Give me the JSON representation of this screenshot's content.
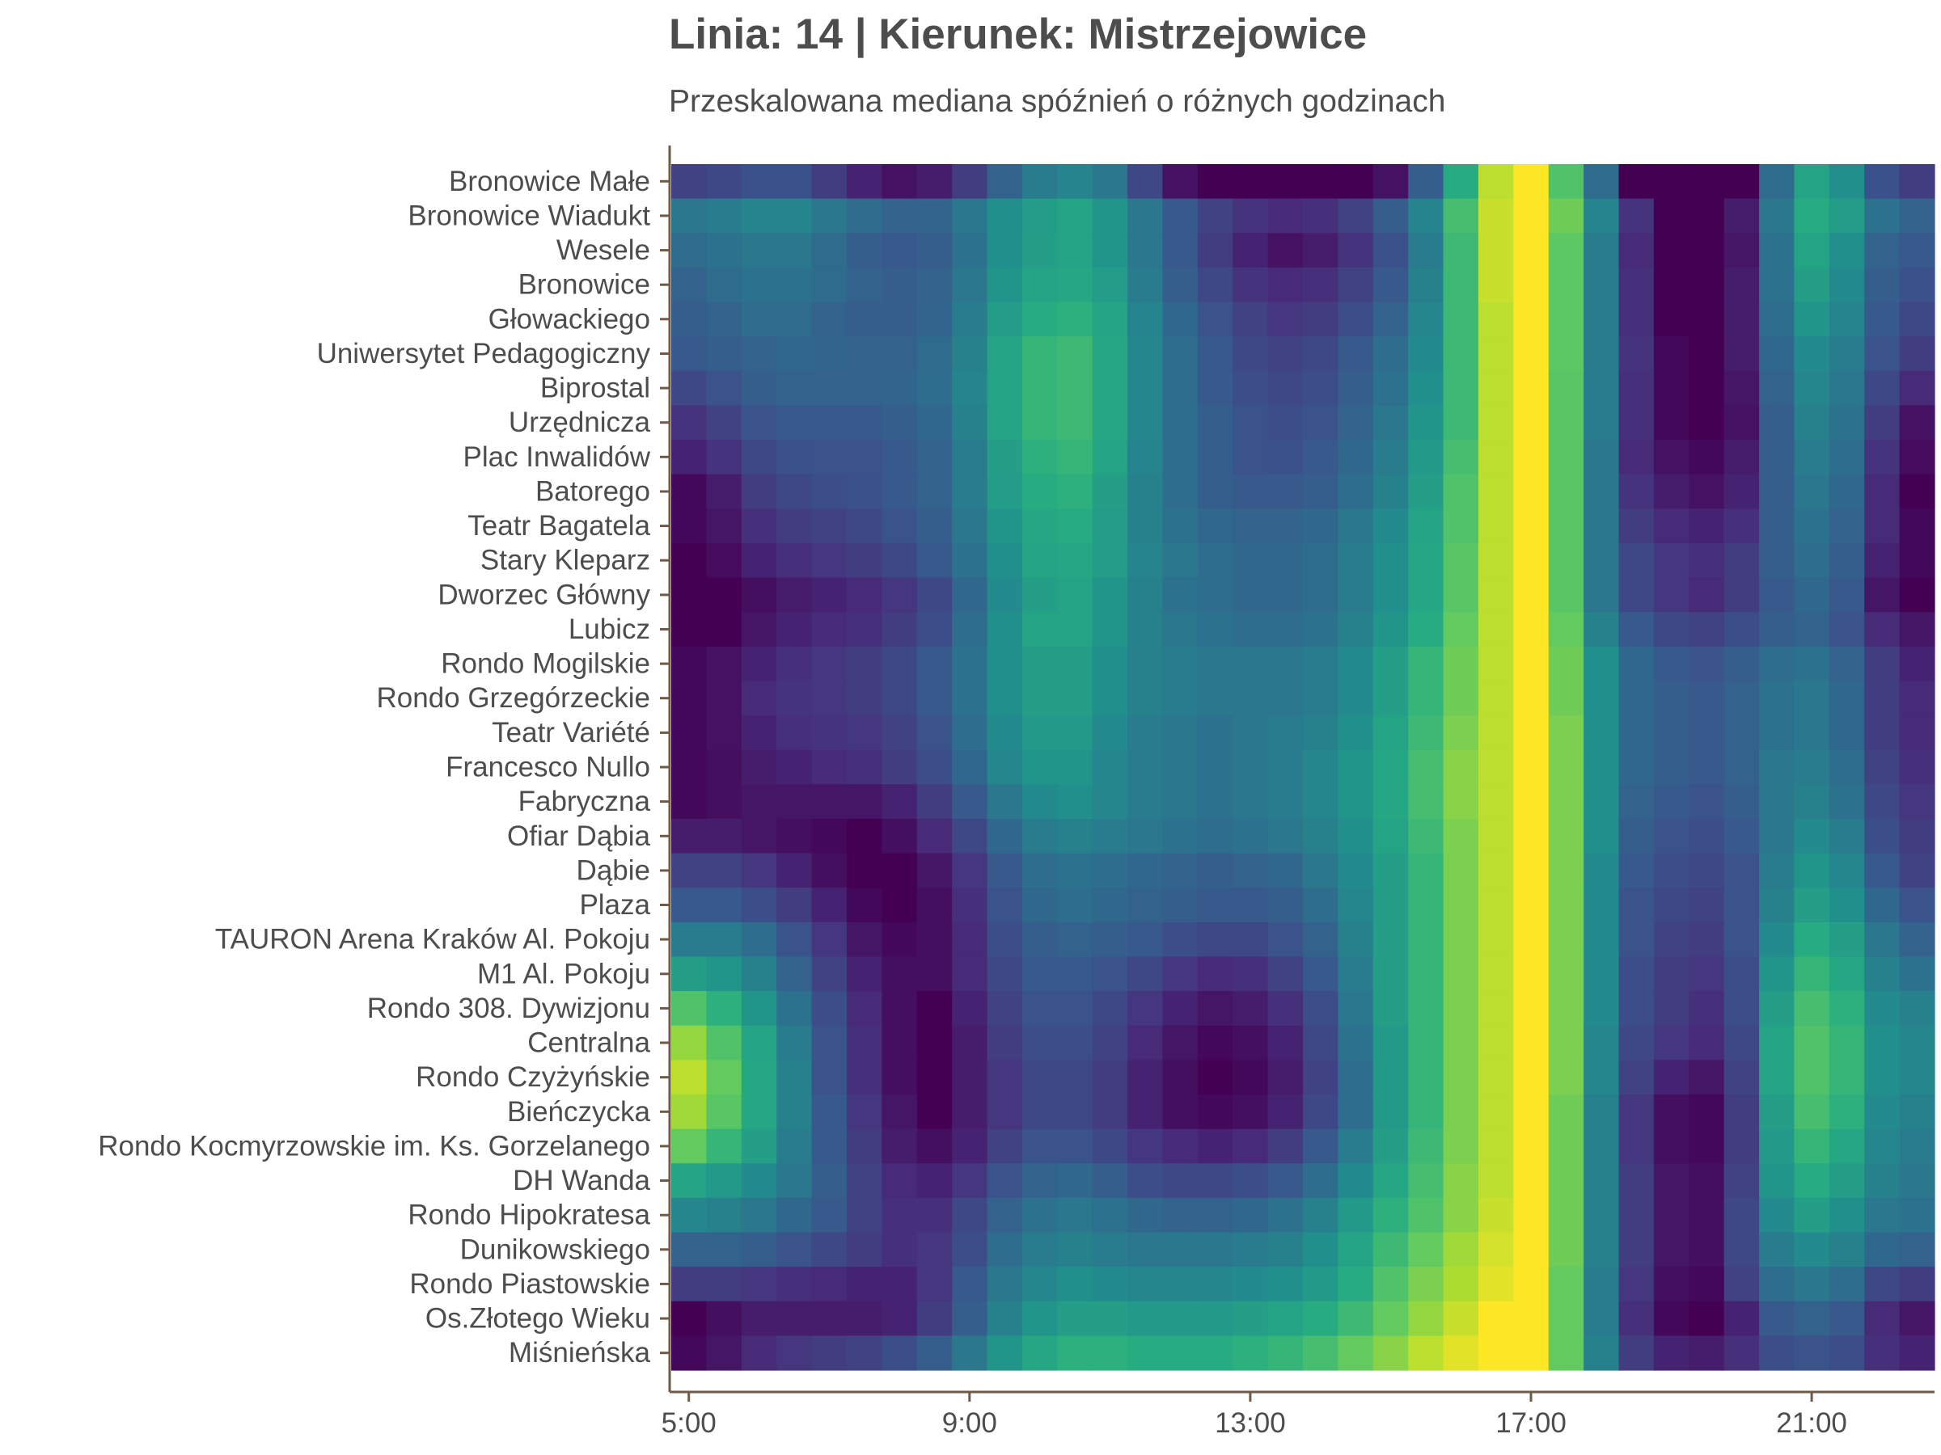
{
  "chart_data": {
    "type": "heatmap",
    "title": "Linia: 14 | Kierunek: Mistrzejowice",
    "subtitle": "Przeskalowana mediana spóźnień o różnych godzinach",
    "xlabel": "",
    "ylabel": "",
    "x_hours": [
      5,
      5.5,
      6,
      6.5,
      7,
      7.5,
      8,
      8.5,
      9,
      9.5,
      10,
      10.5,
      11,
      11.5,
      12,
      12.5,
      13,
      13.5,
      14,
      14.5,
      15,
      15.5,
      16,
      16.5,
      17,
      17.5,
      18,
      18.5,
      19,
      19.5,
      20,
      20.5,
      21,
      21.5,
      22,
      22.5
    ],
    "x_ticks": [
      "5:00",
      "9:00",
      "13:00",
      "17:00",
      "21:00"
    ],
    "x_tick_hours": [
      5,
      9,
      13,
      17,
      21
    ],
    "xlim": [
      4.75,
      22.75
    ],
    "colorscale": "viridis",
    "value_range": [
      0,
      1
    ],
    "stops": [
      "Bronowice Małe",
      "Bronowice Wiadukt",
      "Wesele",
      "Bronowice",
      "Głowackiego",
      "Uniwersytet Pedagogiczny",
      "Biprostal",
      "Urzędnicza",
      "Plac Inwalidów",
      "Batorego",
      "Teatr Bagatela",
      "Stary Kleparz",
      "Dworzec Główny",
      "Lubicz",
      "Rondo Mogilskie",
      "Rondo Grzegórzeckie",
      "Teatr Variété",
      "Francesco Nullo",
      "Fabryczna",
      "Ofiar Dąbia",
      "Dąbie",
      "Plaza",
      "TAURON Arena Kraków Al. Pokoju",
      "M1 Al. Pokoju",
      "Rondo 308. Dywizjonu",
      "Centralna",
      "Rondo Czyżyńskie",
      "Bieńczycka",
      "Rondo Kocmyrzowskie im. Ks. Gorzelanego",
      "DH Wanda",
      "Rondo Hipokratesa",
      "Dunikowskiego",
      "Rondo Piastowskie",
      "Os.Złotego Wieku",
      "Miśnieńska"
    ],
    "values": [
      [
        0.2,
        0.22,
        0.25,
        0.25,
        0.18,
        0.1,
        0.05,
        0.08,
        0.18,
        0.32,
        0.42,
        0.45,
        0.4,
        0.22,
        0.05,
        0.0,
        0.0,
        0.0,
        0.0,
        0.0,
        0.05,
        0.3,
        0.62,
        0.9,
        1.0,
        0.72,
        0.35,
        0.0,
        0.0,
        0.0,
        0.0,
        0.35,
        0.58,
        0.5,
        0.25,
        0.18
      ],
      [
        0.4,
        0.42,
        0.45,
        0.45,
        0.4,
        0.35,
        0.32,
        0.33,
        0.4,
        0.5,
        0.55,
        0.58,
        0.52,
        0.4,
        0.28,
        0.2,
        0.15,
        0.12,
        0.14,
        0.2,
        0.3,
        0.45,
        0.7,
        0.92,
        1.0,
        0.78,
        0.45,
        0.15,
        0.0,
        0.0,
        0.08,
        0.4,
        0.62,
        0.55,
        0.38,
        0.32
      ],
      [
        0.35,
        0.38,
        0.4,
        0.4,
        0.35,
        0.3,
        0.28,
        0.3,
        0.38,
        0.5,
        0.56,
        0.58,
        0.52,
        0.4,
        0.28,
        0.18,
        0.1,
        0.05,
        0.08,
        0.15,
        0.25,
        0.42,
        0.68,
        0.92,
        1.0,
        0.75,
        0.42,
        0.12,
        0.0,
        0.0,
        0.06,
        0.38,
        0.58,
        0.5,
        0.32,
        0.28
      ],
      [
        0.32,
        0.35,
        0.38,
        0.38,
        0.35,
        0.32,
        0.3,
        0.32,
        0.4,
        0.52,
        0.58,
        0.6,
        0.55,
        0.42,
        0.3,
        0.22,
        0.15,
        0.12,
        0.14,
        0.2,
        0.28,
        0.44,
        0.68,
        0.92,
        1.0,
        0.75,
        0.42,
        0.14,
        0.0,
        0.0,
        0.08,
        0.38,
        0.56,
        0.48,
        0.3,
        0.25
      ],
      [
        0.3,
        0.32,
        0.35,
        0.35,
        0.32,
        0.3,
        0.3,
        0.33,
        0.42,
        0.55,
        0.62,
        0.64,
        0.58,
        0.45,
        0.34,
        0.26,
        0.2,
        0.16,
        0.18,
        0.24,
        0.32,
        0.46,
        0.68,
        0.9,
        1.0,
        0.75,
        0.42,
        0.14,
        0.0,
        0.0,
        0.08,
        0.36,
        0.52,
        0.45,
        0.28,
        0.22
      ],
      [
        0.28,
        0.3,
        0.32,
        0.34,
        0.33,
        0.32,
        0.32,
        0.35,
        0.44,
        0.58,
        0.66,
        0.68,
        0.6,
        0.46,
        0.36,
        0.28,
        0.22,
        0.2,
        0.22,
        0.28,
        0.36,
        0.48,
        0.68,
        0.9,
        1.0,
        0.75,
        0.42,
        0.15,
        0.02,
        0.0,
        0.08,
        0.34,
        0.48,
        0.42,
        0.26,
        0.18
      ],
      [
        0.22,
        0.26,
        0.3,
        0.32,
        0.32,
        0.32,
        0.33,
        0.36,
        0.45,
        0.58,
        0.66,
        0.68,
        0.6,
        0.46,
        0.36,
        0.28,
        0.24,
        0.22,
        0.24,
        0.3,
        0.38,
        0.5,
        0.68,
        0.9,
        1.0,
        0.74,
        0.42,
        0.14,
        0.02,
        0.0,
        0.06,
        0.32,
        0.46,
        0.4,
        0.22,
        0.12
      ],
      [
        0.15,
        0.2,
        0.26,
        0.28,
        0.28,
        0.28,
        0.3,
        0.34,
        0.44,
        0.58,
        0.66,
        0.68,
        0.6,
        0.46,
        0.36,
        0.3,
        0.26,
        0.24,
        0.26,
        0.32,
        0.4,
        0.52,
        0.68,
        0.9,
        1.0,
        0.74,
        0.42,
        0.14,
        0.02,
        0.0,
        0.05,
        0.3,
        0.44,
        0.38,
        0.18,
        0.05
      ],
      [
        0.1,
        0.15,
        0.22,
        0.25,
        0.26,
        0.26,
        0.28,
        0.32,
        0.42,
        0.56,
        0.64,
        0.66,
        0.58,
        0.45,
        0.36,
        0.3,
        0.26,
        0.25,
        0.28,
        0.34,
        0.42,
        0.54,
        0.7,
        0.9,
        1.0,
        0.74,
        0.4,
        0.12,
        0.05,
        0.02,
        0.08,
        0.3,
        0.42,
        0.36,
        0.15,
        0.03
      ],
      [
        0.02,
        0.08,
        0.18,
        0.22,
        0.24,
        0.25,
        0.28,
        0.32,
        0.42,
        0.55,
        0.62,
        0.64,
        0.56,
        0.44,
        0.36,
        0.3,
        0.28,
        0.28,
        0.3,
        0.36,
        0.44,
        0.56,
        0.72,
        0.9,
        1.0,
        0.74,
        0.4,
        0.15,
        0.08,
        0.05,
        0.1,
        0.3,
        0.4,
        0.34,
        0.12,
        0.0
      ],
      [
        0.02,
        0.06,
        0.14,
        0.18,
        0.2,
        0.22,
        0.26,
        0.3,
        0.4,
        0.52,
        0.6,
        0.62,
        0.55,
        0.44,
        0.38,
        0.34,
        0.32,
        0.32,
        0.34,
        0.4,
        0.48,
        0.58,
        0.72,
        0.9,
        1.0,
        0.74,
        0.4,
        0.18,
        0.12,
        0.1,
        0.14,
        0.3,
        0.38,
        0.32,
        0.12,
        0.02
      ],
      [
        0.0,
        0.03,
        0.1,
        0.14,
        0.16,
        0.18,
        0.22,
        0.28,
        0.38,
        0.5,
        0.58,
        0.6,
        0.55,
        0.45,
        0.4,
        0.36,
        0.34,
        0.34,
        0.36,
        0.42,
        0.5,
        0.6,
        0.74,
        0.9,
        1.0,
        0.74,
        0.4,
        0.22,
        0.16,
        0.14,
        0.18,
        0.3,
        0.36,
        0.3,
        0.1,
        0.02
      ],
      [
        0.0,
        0.0,
        0.04,
        0.08,
        0.1,
        0.12,
        0.16,
        0.22,
        0.34,
        0.48,
        0.56,
        0.58,
        0.52,
        0.44,
        0.38,
        0.36,
        0.34,
        0.34,
        0.36,
        0.42,
        0.5,
        0.6,
        0.74,
        0.9,
        1.0,
        0.74,
        0.4,
        0.22,
        0.16,
        0.12,
        0.18,
        0.28,
        0.34,
        0.28,
        0.06,
        0.0
      ],
      [
        0.0,
        0.0,
        0.06,
        0.1,
        0.12,
        0.14,
        0.18,
        0.24,
        0.36,
        0.5,
        0.58,
        0.58,
        0.52,
        0.44,
        0.4,
        0.38,
        0.36,
        0.36,
        0.38,
        0.44,
        0.52,
        0.62,
        0.76,
        0.9,
        1.0,
        0.76,
        0.44,
        0.28,
        0.22,
        0.2,
        0.24,
        0.3,
        0.32,
        0.26,
        0.12,
        0.06
      ],
      [
        0.02,
        0.05,
        0.1,
        0.14,
        0.16,
        0.18,
        0.22,
        0.28,
        0.38,
        0.5,
        0.56,
        0.56,
        0.5,
        0.44,
        0.42,
        0.4,
        0.4,
        0.4,
        0.42,
        0.48,
        0.56,
        0.66,
        0.78,
        0.9,
        1.0,
        0.78,
        0.5,
        0.34,
        0.28,
        0.26,
        0.3,
        0.36,
        0.38,
        0.32,
        0.18,
        0.1
      ],
      [
        0.02,
        0.05,
        0.12,
        0.15,
        0.16,
        0.18,
        0.22,
        0.28,
        0.38,
        0.5,
        0.56,
        0.56,
        0.5,
        0.44,
        0.42,
        0.4,
        0.4,
        0.4,
        0.42,
        0.48,
        0.56,
        0.66,
        0.78,
        0.9,
        1.0,
        0.78,
        0.5,
        0.34,
        0.3,
        0.28,
        0.32,
        0.38,
        0.4,
        0.34,
        0.18,
        0.12
      ],
      [
        0.02,
        0.05,
        0.1,
        0.14,
        0.15,
        0.16,
        0.2,
        0.26,
        0.36,
        0.48,
        0.54,
        0.54,
        0.48,
        0.42,
        0.4,
        0.38,
        0.4,
        0.42,
        0.44,
        0.5,
        0.58,
        0.68,
        0.8,
        0.9,
        1.0,
        0.8,
        0.5,
        0.34,
        0.3,
        0.28,
        0.32,
        0.38,
        0.4,
        0.34,
        0.18,
        0.12
      ],
      [
        0.02,
        0.04,
        0.08,
        0.1,
        0.12,
        0.14,
        0.18,
        0.24,
        0.34,
        0.46,
        0.52,
        0.52,
        0.46,
        0.42,
        0.4,
        0.38,
        0.4,
        0.42,
        0.46,
        0.52,
        0.6,
        0.7,
        0.82,
        0.9,
        1.0,
        0.8,
        0.5,
        0.34,
        0.3,
        0.28,
        0.32,
        0.4,
        0.42,
        0.36,
        0.2,
        0.14
      ],
      [
        0.02,
        0.04,
        0.06,
        0.06,
        0.06,
        0.06,
        0.1,
        0.18,
        0.28,
        0.4,
        0.48,
        0.5,
        0.46,
        0.42,
        0.4,
        0.38,
        0.4,
        0.42,
        0.46,
        0.52,
        0.6,
        0.7,
        0.82,
        0.9,
        1.0,
        0.8,
        0.5,
        0.32,
        0.28,
        0.26,
        0.3,
        0.4,
        0.44,
        0.38,
        0.22,
        0.16
      ],
      [
        0.08,
        0.08,
        0.06,
        0.04,
        0.02,
        0.0,
        0.04,
        0.12,
        0.22,
        0.34,
        0.42,
        0.44,
        0.42,
        0.4,
        0.38,
        0.36,
        0.38,
        0.4,
        0.44,
        0.5,
        0.58,
        0.68,
        0.8,
        0.9,
        1.0,
        0.8,
        0.5,
        0.3,
        0.26,
        0.24,
        0.28,
        0.4,
        0.48,
        0.42,
        0.24,
        0.18
      ],
      [
        0.2,
        0.2,
        0.16,
        0.1,
        0.04,
        0.0,
        0.0,
        0.06,
        0.16,
        0.28,
        0.36,
        0.38,
        0.36,
        0.34,
        0.32,
        0.3,
        0.32,
        0.34,
        0.4,
        0.48,
        0.56,
        0.66,
        0.8,
        0.9,
        1.0,
        0.8,
        0.48,
        0.28,
        0.24,
        0.22,
        0.26,
        0.42,
        0.52,
        0.46,
        0.28,
        0.2
      ],
      [
        0.28,
        0.28,
        0.24,
        0.18,
        0.1,
        0.02,
        0.0,
        0.04,
        0.14,
        0.26,
        0.34,
        0.36,
        0.34,
        0.32,
        0.3,
        0.28,
        0.28,
        0.3,
        0.36,
        0.46,
        0.56,
        0.66,
        0.8,
        0.9,
        1.0,
        0.8,
        0.48,
        0.26,
        0.22,
        0.2,
        0.26,
        0.44,
        0.56,
        0.5,
        0.34,
        0.26
      ],
      [
        0.42,
        0.42,
        0.36,
        0.26,
        0.16,
        0.06,
        0.02,
        0.04,
        0.12,
        0.24,
        0.3,
        0.32,
        0.3,
        0.28,
        0.24,
        0.22,
        0.22,
        0.26,
        0.32,
        0.44,
        0.56,
        0.66,
        0.8,
        0.9,
        1.0,
        0.8,
        0.48,
        0.26,
        0.2,
        0.18,
        0.26,
        0.48,
        0.62,
        0.56,
        0.4,
        0.32
      ],
      [
        0.56,
        0.52,
        0.44,
        0.32,
        0.2,
        0.1,
        0.04,
        0.04,
        0.12,
        0.22,
        0.28,
        0.28,
        0.26,
        0.22,
        0.16,
        0.12,
        0.14,
        0.2,
        0.28,
        0.42,
        0.56,
        0.66,
        0.8,
        0.9,
        1.0,
        0.8,
        0.48,
        0.24,
        0.18,
        0.16,
        0.24,
        0.52,
        0.66,
        0.6,
        0.44,
        0.38
      ],
      [
        0.72,
        0.64,
        0.52,
        0.38,
        0.24,
        0.12,
        0.04,
        0.0,
        0.1,
        0.2,
        0.26,
        0.26,
        0.22,
        0.16,
        0.1,
        0.06,
        0.08,
        0.14,
        0.24,
        0.4,
        0.56,
        0.66,
        0.8,
        0.9,
        1.0,
        0.8,
        0.48,
        0.24,
        0.18,
        0.14,
        0.24,
        0.56,
        0.7,
        0.64,
        0.48,
        0.44
      ],
      [
        0.84,
        0.72,
        0.58,
        0.42,
        0.26,
        0.14,
        0.04,
        0.0,
        0.08,
        0.18,
        0.24,
        0.24,
        0.2,
        0.12,
        0.06,
        0.02,
        0.04,
        0.1,
        0.22,
        0.38,
        0.54,
        0.66,
        0.8,
        0.9,
        1.0,
        0.8,
        0.46,
        0.22,
        0.16,
        0.12,
        0.22,
        0.58,
        0.72,
        0.66,
        0.5,
        0.46
      ],
      [
        0.9,
        0.76,
        0.6,
        0.44,
        0.26,
        0.14,
        0.04,
        0.0,
        0.08,
        0.16,
        0.22,
        0.22,
        0.18,
        0.1,
        0.04,
        0.0,
        0.02,
        0.08,
        0.2,
        0.36,
        0.54,
        0.66,
        0.8,
        0.9,
        1.0,
        0.8,
        0.46,
        0.2,
        0.1,
        0.06,
        0.2,
        0.58,
        0.72,
        0.66,
        0.5,
        0.46
      ],
      [
        0.86,
        0.74,
        0.6,
        0.44,
        0.28,
        0.16,
        0.06,
        0.0,
        0.08,
        0.16,
        0.22,
        0.22,
        0.18,
        0.1,
        0.04,
        0.02,
        0.04,
        0.1,
        0.22,
        0.36,
        0.54,
        0.66,
        0.8,
        0.9,
        1.0,
        0.78,
        0.44,
        0.16,
        0.04,
        0.02,
        0.18,
        0.56,
        0.7,
        0.64,
        0.48,
        0.44
      ],
      [
        0.76,
        0.66,
        0.56,
        0.42,
        0.28,
        0.18,
        0.08,
        0.04,
        0.1,
        0.2,
        0.26,
        0.26,
        0.22,
        0.16,
        0.12,
        0.1,
        0.12,
        0.18,
        0.28,
        0.42,
        0.56,
        0.68,
        0.8,
        0.9,
        1.0,
        0.78,
        0.44,
        0.16,
        0.04,
        0.02,
        0.18,
        0.54,
        0.66,
        0.6,
        0.46,
        0.42
      ],
      [
        0.58,
        0.54,
        0.48,
        0.4,
        0.3,
        0.2,
        0.12,
        0.1,
        0.16,
        0.26,
        0.32,
        0.34,
        0.3,
        0.24,
        0.22,
        0.22,
        0.24,
        0.28,
        0.36,
        0.48,
        0.6,
        0.7,
        0.82,
        0.9,
        1.0,
        0.78,
        0.44,
        0.18,
        0.06,
        0.04,
        0.2,
        0.52,
        0.62,
        0.56,
        0.44,
        0.4
      ],
      [
        0.46,
        0.44,
        0.4,
        0.34,
        0.28,
        0.2,
        0.14,
        0.14,
        0.22,
        0.32,
        0.38,
        0.4,
        0.38,
        0.34,
        0.32,
        0.32,
        0.34,
        0.38,
        0.44,
        0.54,
        0.64,
        0.72,
        0.82,
        0.92,
        1.0,
        0.78,
        0.44,
        0.18,
        0.06,
        0.04,
        0.22,
        0.48,
        0.56,
        0.5,
        0.4,
        0.38
      ],
      [
        0.32,
        0.32,
        0.3,
        0.26,
        0.22,
        0.18,
        0.14,
        0.16,
        0.24,
        0.36,
        0.42,
        0.44,
        0.42,
        0.4,
        0.4,
        0.4,
        0.42,
        0.44,
        0.5,
        0.58,
        0.68,
        0.76,
        0.86,
        0.94,
        1.0,
        0.78,
        0.44,
        0.18,
        0.06,
        0.04,
        0.22,
        0.42,
        0.48,
        0.44,
        0.34,
        0.32
      ],
      [
        0.18,
        0.18,
        0.16,
        0.14,
        0.12,
        0.1,
        0.1,
        0.16,
        0.28,
        0.4,
        0.46,
        0.5,
        0.48,
        0.46,
        0.46,
        0.46,
        0.48,
        0.5,
        0.54,
        0.62,
        0.72,
        0.8,
        0.88,
        0.96,
        1.0,
        0.76,
        0.42,
        0.16,
        0.04,
        0.02,
        0.2,
        0.36,
        0.4,
        0.36,
        0.22,
        0.18
      ],
      [
        0.0,
        0.04,
        0.08,
        0.08,
        0.08,
        0.08,
        0.1,
        0.18,
        0.3,
        0.44,
        0.52,
        0.56,
        0.56,
        0.54,
        0.54,
        0.54,
        0.56,
        0.58,
        0.62,
        0.68,
        0.76,
        0.84,
        0.92,
        1.0,
        1.0,
        0.76,
        0.42,
        0.14,
        0.02,
        0.0,
        0.1,
        0.28,
        0.32,
        0.28,
        0.12,
        0.06
      ],
      [
        0.02,
        0.06,
        0.12,
        0.16,
        0.18,
        0.2,
        0.24,
        0.3,
        0.4,
        0.52,
        0.6,
        0.64,
        0.64,
        0.62,
        0.62,
        0.62,
        0.64,
        0.66,
        0.7,
        0.76,
        0.82,
        0.9,
        0.96,
        1.0,
        1.0,
        0.76,
        0.44,
        0.18,
        0.1,
        0.08,
        0.14,
        0.24,
        0.26,
        0.24,
        0.14,
        0.1
      ]
    ]
  }
}
